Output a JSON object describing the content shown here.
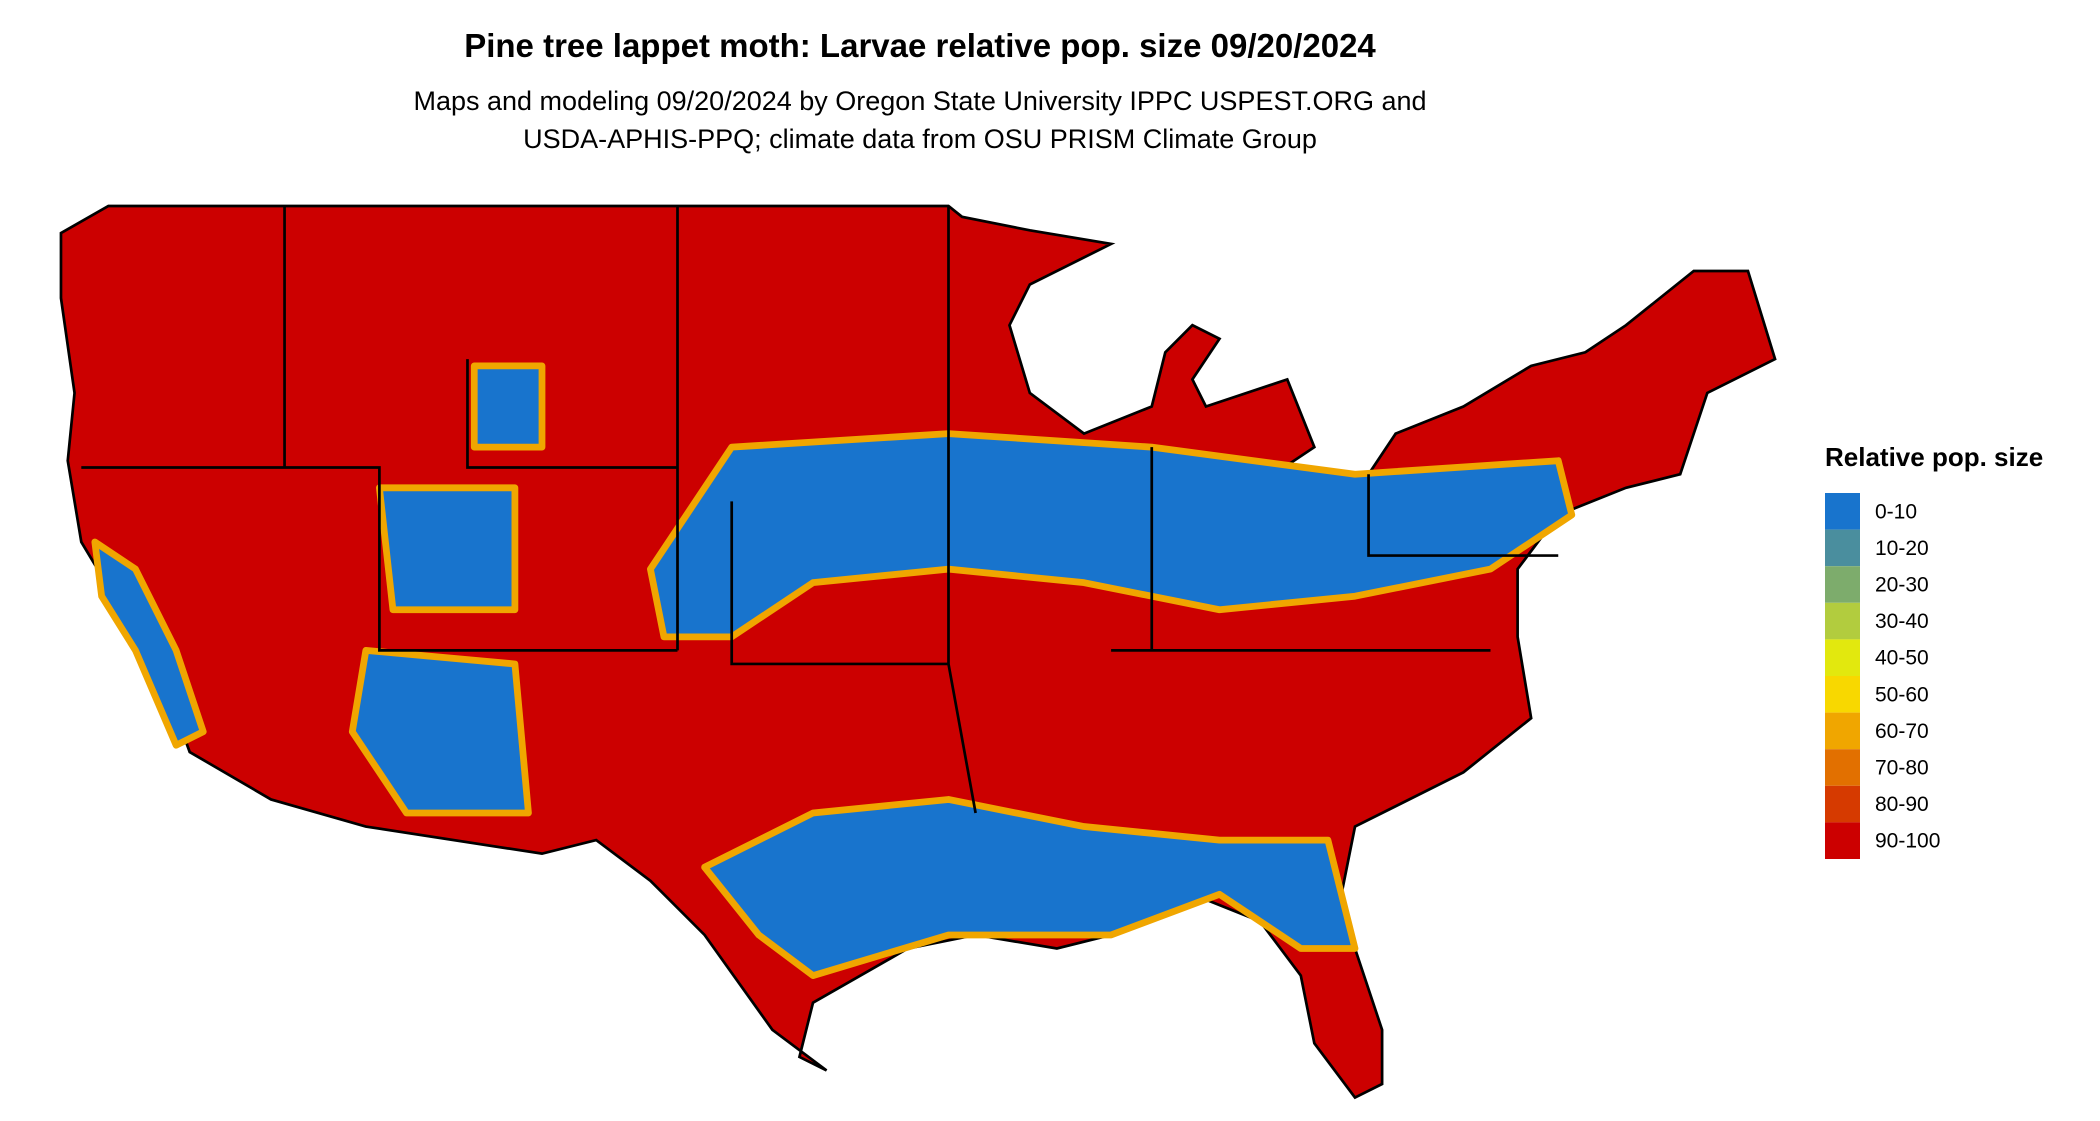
{
  "title": "Pine tree lappet moth: Larvae relative pop. size 09/20/2024",
  "subtitle": [
    "Maps and modeling 09/20/2024 by Oregon State University IPPC USPEST.ORG and",
    "USDA-APHIS-PPQ; climate data from OSU PRISM Climate Group"
  ],
  "legend": {
    "title": "Relative pop. size",
    "items": [
      {
        "label": "0-10",
        "color": "#1874cd"
      },
      {
        "label": "10-20",
        "color": "#4a8e9e"
      },
      {
        "label": "20-30",
        "color": "#7dac6c"
      },
      {
        "label": "30-40",
        "color": "#b2cc3e"
      },
      {
        "label": "40-50",
        "color": "#e2e80e"
      },
      {
        "label": "50-60",
        "color": "#f8d800"
      },
      {
        "label": "60-70",
        "color": "#f0a600"
      },
      {
        "label": "70-80",
        "color": "#e27000"
      },
      {
        "label": "80-90",
        "color": "#d63a00"
      },
      {
        "label": "90-100",
        "color": "#cc0000"
      }
    ]
  }
}
